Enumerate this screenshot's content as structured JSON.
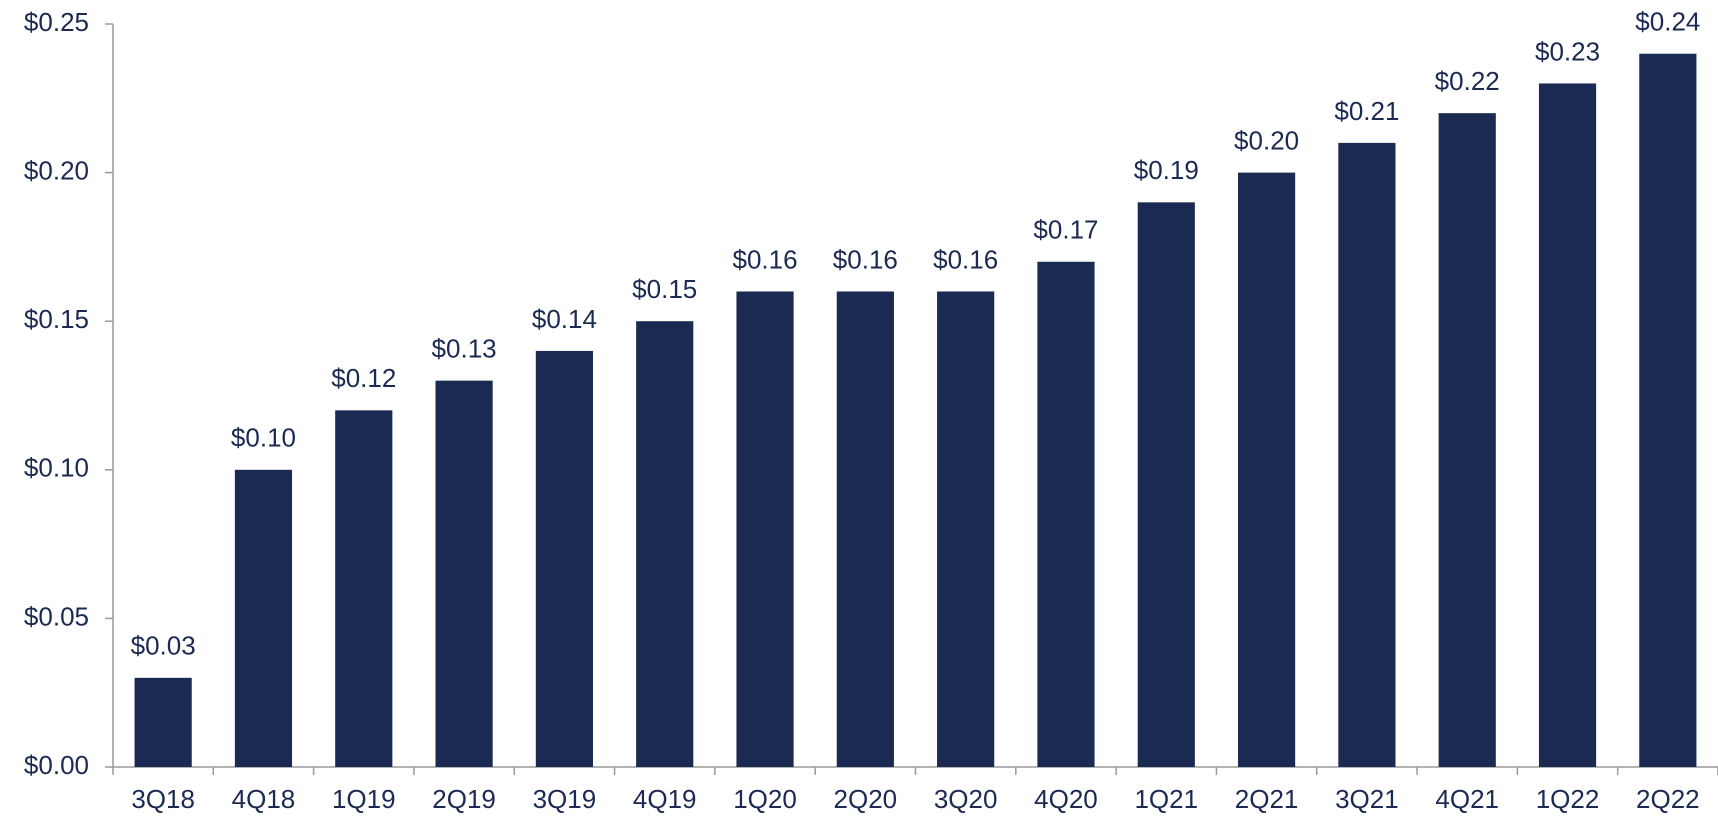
{
  "chart_data": {
    "type": "bar",
    "categories": [
      "3Q18",
      "4Q18",
      "1Q19",
      "2Q19",
      "3Q19",
      "4Q19",
      "1Q20",
      "2Q20",
      "3Q20",
      "4Q20",
      "1Q21",
      "2Q21",
      "3Q21",
      "4Q21",
      "1Q22",
      "2Q22"
    ],
    "values": [
      0.03,
      0.1,
      0.12,
      0.13,
      0.14,
      0.15,
      0.16,
      0.16,
      0.16,
      0.17,
      0.19,
      0.2,
      0.21,
      0.22,
      0.23,
      0.24
    ],
    "value_labels": [
      "$0.03",
      "$0.10",
      "$0.12",
      "$0.13",
      "$0.14",
      "$0.15",
      "$0.16",
      "$0.16",
      "$0.16",
      "$0.17",
      "$0.19",
      "$0.20",
      "$0.21",
      "$0.22",
      "$0.23",
      "$0.24"
    ],
    "color": "#1b2a52",
    "ylim": [
      0,
      0.25
    ],
    "yticks": [
      {
        "value": 0,
        "label": "$0.00"
      },
      {
        "value": 0.05,
        "label": "$0.05"
      },
      {
        "value": 0.1,
        "label": "$0.10"
      },
      {
        "value": 0.15,
        "label": "$0.15"
      },
      {
        "value": 0.2,
        "label": "$0.20"
      },
      {
        "value": 0.25,
        "label": "$0.25"
      }
    ],
    "grid": false
  }
}
